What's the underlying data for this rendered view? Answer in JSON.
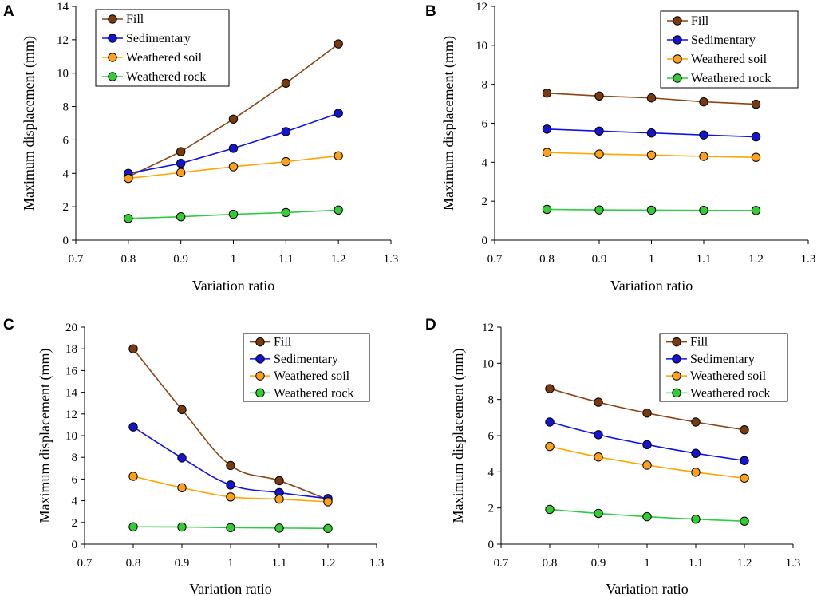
{
  "colors": {
    "Fill": "#8B4513",
    "Sedimentary": "#1010E8",
    "Weathered soil": "#FFA500",
    "Weathered rock": "#2ECC40",
    "Fill_marker": "#7A3A10",
    "Sedimentary_marker": "#1515D0",
    "Weathered soil_marker": "#FFA01A",
    "Weathered rock_marker": "#33CC33"
  },
  "chart_data": [
    {
      "panel": "A",
      "type": "line",
      "smooth": false,
      "xlabel": "Variation ratio",
      "ylabel": "Maximum displacement  (mm)",
      "xlim": [
        0.7,
        1.3
      ],
      "xticks": [
        "0.7",
        "0.8",
        "0.9",
        "1",
        "1.1",
        "1.2",
        "1.3"
      ],
      "ylim": [
        0,
        14
      ],
      "yticks": [
        "0",
        "2",
        "4",
        "6",
        "8",
        "10",
        "12",
        "14"
      ],
      "legend_position": "top-left",
      "x": [
        0.8,
        0.9,
        1.0,
        1.1,
        1.2
      ],
      "series": [
        {
          "name": "Fill",
          "values": [
            3.8,
            5.3,
            7.25,
            9.4,
            11.75
          ]
        },
        {
          "name": "Sedimentary",
          "values": [
            4.0,
            4.6,
            5.5,
            6.5,
            7.6
          ]
        },
        {
          "name": "Weathered soil",
          "values": [
            3.7,
            4.05,
            4.4,
            4.7,
            5.05
          ]
        },
        {
          "name": "Weathered rock",
          "values": [
            1.3,
            1.4,
            1.55,
            1.65,
            1.8
          ]
        }
      ]
    },
    {
      "panel": "B",
      "type": "line",
      "smooth": false,
      "xlabel": "Variation ratio",
      "ylabel": "Maximum displacement  (mm)",
      "xlim": [
        0.7,
        1.3
      ],
      "xticks": [
        "0.7",
        "0.8",
        "0.9",
        "1",
        "1.1",
        "1.2",
        "1.3"
      ],
      "ylim": [
        0,
        12
      ],
      "yticks": [
        "0",
        "2",
        "4",
        "6",
        "8",
        "10",
        "12"
      ],
      "legend_position": "top-right",
      "x": [
        0.8,
        0.9,
        1.0,
        1.1,
        1.2
      ],
      "series": [
        {
          "name": "Fill",
          "values": [
            7.55,
            7.4,
            7.3,
            7.1,
            6.98
          ]
        },
        {
          "name": "Sedimentary",
          "values": [
            5.7,
            5.6,
            5.5,
            5.4,
            5.3
          ]
        },
        {
          "name": "Weathered soil",
          "values": [
            4.5,
            4.42,
            4.37,
            4.3,
            4.25
          ]
        },
        {
          "name": "Weathered rock",
          "values": [
            1.58,
            1.55,
            1.54,
            1.53,
            1.52
          ]
        }
      ]
    },
    {
      "panel": "C",
      "type": "line",
      "smooth": true,
      "xlabel": "Variation ratio",
      "ylabel": "Maximum displacement  (mm)",
      "xlim": [
        0.7,
        1.3
      ],
      "xticks": [
        "0.7",
        "0.8",
        "0.9",
        "1",
        "1.1",
        "1.2",
        "1.3"
      ],
      "ylim": [
        0,
        20
      ],
      "yticks": [
        "0",
        "2",
        "4",
        "6",
        "8",
        "10",
        "12",
        "14",
        "16",
        "18",
        "20"
      ],
      "legend_position": "top-right",
      "x": [
        0.8,
        0.9,
        1.0,
        1.1,
        1.2
      ],
      "series": [
        {
          "name": "Fill",
          "values": [
            18.0,
            12.4,
            7.25,
            5.85,
            4.1
          ]
        },
        {
          "name": "Sedimentary",
          "values": [
            10.8,
            7.95,
            5.45,
            4.75,
            4.2
          ]
        },
        {
          "name": "Weathered soil",
          "values": [
            6.25,
            5.2,
            4.35,
            4.15,
            3.9
          ]
        },
        {
          "name": "Weathered rock",
          "values": [
            1.6,
            1.58,
            1.52,
            1.48,
            1.45
          ]
        }
      ]
    },
    {
      "panel": "D",
      "type": "line",
      "smooth": true,
      "xlabel": "Variation ratio",
      "ylabel": "Maximum displacement  (mm)",
      "xlim": [
        0.7,
        1.3
      ],
      "xticks": [
        "0.7",
        "0.8",
        "0.9",
        "1",
        "1.1",
        "1.2",
        "1.3"
      ],
      "ylim": [
        0,
        12
      ],
      "yticks": [
        "0",
        "2",
        "4",
        "6",
        "8",
        "10",
        "12"
      ],
      "legend_position": "top-right",
      "x": [
        0.8,
        0.9,
        1.0,
        1.1,
        1.2
      ],
      "series": [
        {
          "name": "Fill",
          "values": [
            8.6,
            7.85,
            7.25,
            6.75,
            6.32
          ]
        },
        {
          "name": "Sedimentary",
          "values": [
            6.75,
            6.05,
            5.5,
            5.02,
            4.62
          ]
        },
        {
          "name": "Weathered soil",
          "values": [
            5.4,
            4.82,
            4.37,
            3.98,
            3.65
          ]
        },
        {
          "name": "Weathered rock",
          "values": [
            1.92,
            1.7,
            1.52,
            1.38,
            1.27
          ]
        }
      ]
    }
  ]
}
